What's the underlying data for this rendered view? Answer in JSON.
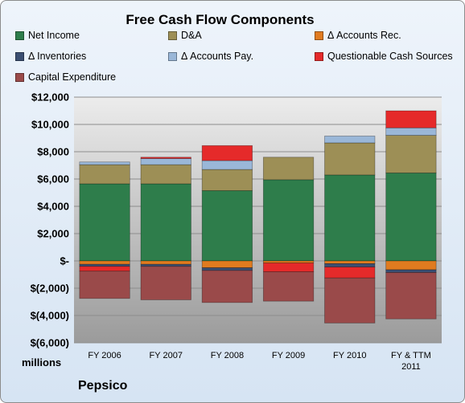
{
  "chart_data": {
    "type": "bar",
    "stacked": true,
    "title": "Free Cash Flow Components",
    "units_label": "millions",
    "company": "Pepsico",
    "categories": [
      "FY 2006",
      "FY 2007",
      "FY 2008",
      "FY 2009",
      "FY 2010",
      "FY & TTM 2011"
    ],
    "ylim": [
      -6000,
      12000
    ],
    "yticks": [
      {
        "value": 12000,
        "label": "$12,000"
      },
      {
        "value": 10000,
        "label": "$10,000"
      },
      {
        "value": 8000,
        "label": "$8,000"
      },
      {
        "value": 6000,
        "label": "$6,000"
      },
      {
        "value": 4000,
        "label": "$4,000"
      },
      {
        "value": 2000,
        "label": "$2,000"
      },
      {
        "value": 0,
        "label": "$-"
      },
      {
        "value": -2000,
        "label": "$(2,000)"
      },
      {
        "value": -4000,
        "label": "$(4,000)"
      },
      {
        "value": -6000,
        "label": "$(6,000)"
      }
    ],
    "grid": true,
    "legend_position": "top",
    "series": [
      {
        "name": "Net Income",
        "color": "#2e7d4b",
        "values": [
          5650,
          5650,
          5150,
          5950,
          6300,
          6450
        ]
      },
      {
        "name": "D&A",
        "color": "#9d8f56",
        "values": [
          1400,
          1400,
          1550,
          1650,
          2350,
          2750
        ]
      },
      {
        "name": "Δ Accounts Rec.",
        "color": "#e07b1f",
        "values": [
          -250,
          -250,
          -500,
          -150,
          -200,
          -650
        ]
      },
      {
        "name": "Δ Inventories",
        "color": "#3b4f72",
        "values": [
          -150,
          -150,
          -200,
          0,
          -250,
          -200
        ]
      },
      {
        "name": "Δ Accounts Pay.",
        "color": "#9ab7d8",
        "values": [
          200,
          450,
          650,
          0,
          500,
          550
        ]
      },
      {
        "name": "Questionable Cash Sources",
        "color": "#e52a2a",
        "values": [
          -350,
          100,
          1100,
          -650,
          -800,
          1250
        ]
      },
      {
        "name": "Capital Expenditure",
        "color": "#9a4a4a",
        "values": [
          -2000,
          -2450,
          -2350,
          -2150,
          -3300,
          -3400
        ]
      }
    ]
  }
}
